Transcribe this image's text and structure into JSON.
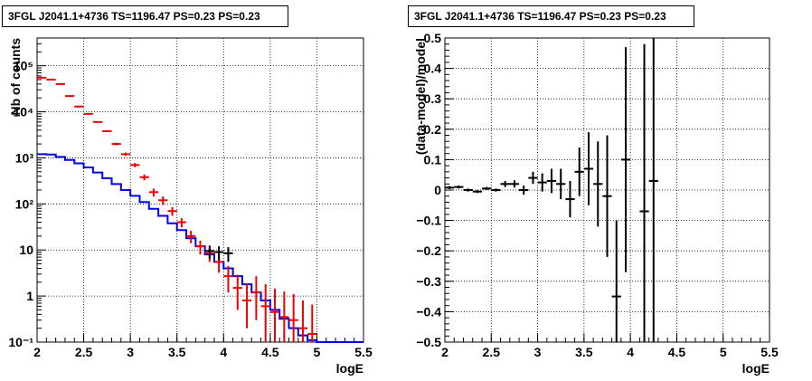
{
  "chart_data": [
    {
      "type": "line",
      "title": "3FGL J2041.1+4736 TS=1196.47 PS=0.23 PS=0.23",
      "xlabel": "logE",
      "ylabel": "Nb of counts",
      "xlim": [
        2,
        5.5
      ],
      "ylim": [
        0.1,
        400000
      ],
      "log_y": true,
      "grid": true,
      "x_ticks": [
        "2",
        "2.5",
        "3",
        "3.5",
        "4",
        "4.5",
        "5",
        "5.5"
      ],
      "y_ticks": [
        {
          "value": 0.1,
          "label": "10⁻¹"
        },
        {
          "value": 1,
          "label": "1"
        },
        {
          "value": 10,
          "label": "10"
        },
        {
          "value": 100,
          "label": "10²"
        },
        {
          "value": 1000,
          "label": "10³"
        },
        {
          "value": 10000,
          "label": "10⁴"
        },
        {
          "value": 100000,
          "label": "10⁵"
        }
      ],
      "series": [
        {
          "kind": "step",
          "color": "#0000ee",
          "bin_edges": [
            2.0,
            2.1,
            2.2,
            2.3,
            2.4,
            2.5,
            2.6,
            2.7,
            2.8,
            2.9,
            3.0,
            3.1,
            3.2,
            3.3,
            3.4,
            3.5,
            3.6,
            3.7,
            3.8,
            3.9,
            4.0,
            4.1,
            4.2,
            4.3,
            4.4,
            4.5,
            4.6,
            4.7,
            4.8,
            4.9,
            5.0,
            5.5
          ],
          "values": [
            1200,
            1180,
            1050,
            900,
            760,
            620,
            480,
            360,
            270,
            200,
            150,
            110,
            78,
            55,
            38,
            27,
            18,
            12,
            8,
            5.5,
            4,
            2.7,
            1.8,
            1.2,
            0.8,
            0.5,
            0.32,
            0.2,
            0.14,
            0.11,
            0.1
          ]
        },
        {
          "kind": "errorbar",
          "color": "#ee0000",
          "x": [
            2.05,
            2.15,
            2.25,
            2.35,
            2.45,
            2.55,
            2.65,
            2.75,
            2.85,
            2.95,
            3.05,
            3.15,
            3.25,
            3.35,
            3.45,
            3.55,
            3.65,
            3.75,
            3.85,
            3.95,
            4.05,
            4.15,
            4.25,
            4.35,
            4.45,
            4.55,
            4.65,
            4.75,
            4.85,
            4.95
          ],
          "xerr": 0.05,
          "y": [
            55000,
            50000,
            40000,
            22000,
            13000,
            9000,
            6000,
            3800,
            2000,
            1200,
            700,
            380,
            180,
            120,
            70,
            40,
            20,
            12,
            8.5,
            5.5,
            2.7,
            1.5,
            0.8,
            1.2,
            0.6,
            0.45,
            0.35,
            0.3,
            0.2,
            0.15
          ],
          "yerr_low": [
            800,
            700,
            600,
            450,
            350,
            280,
            220,
            180,
            130,
            100,
            75,
            55,
            35,
            25,
            15,
            9,
            6,
            4,
            3,
            2.3,
            1.5,
            1.0,
            0.6,
            0.9,
            0.5,
            0.4,
            0.33,
            0.29,
            0.19,
            0.14
          ],
          "yerr_high": [
            800,
            700,
            600,
            450,
            350,
            280,
            220,
            180,
            130,
            100,
            75,
            55,
            35,
            25,
            15,
            9,
            6,
            4,
            3,
            2.3,
            1.8,
            1.4,
            1.1,
            1.5,
            1.2,
            1.0,
            0.9,
            0.8,
            0.6,
            0.5
          ]
        },
        {
          "kind": "errorbar",
          "color": "#000000",
          "x": [
            3.85,
            3.95,
            4.05
          ],
          "xerr": 0.05,
          "y": [
            9.5,
            9,
            8.5
          ],
          "yerr_low": [
            3,
            3,
            3
          ],
          "yerr_high": [
            3,
            3,
            3
          ]
        }
      ]
    },
    {
      "type": "scatter",
      "title": "3FGL J2041.1+4736 TS=1196.47 PS=0.23 PS=0.23",
      "xlabel": "logE",
      "ylabel": "(data-model)/model",
      "xlim": [
        2,
        5.5
      ],
      "ylim": [
        -0.5,
        0.5
      ],
      "grid": true,
      "x_ticks": [
        "2",
        "2.5",
        "3",
        "3.5",
        "4",
        "4.5",
        "5",
        "5.5"
      ],
      "y_ticks": [
        "−0.5",
        "−0.4",
        "−0.3",
        "−0.2",
        "−0.1",
        "0",
        "0.1",
        "0.2",
        "0.3",
        "0.4",
        "0.5"
      ],
      "series": [
        {
          "kind": "errorbar",
          "color": "#000000",
          "x": [
            2.05,
            2.15,
            2.25,
            2.35,
            2.45,
            2.55,
            2.65,
            2.75,
            2.85,
            2.95,
            3.05,
            3.15,
            3.25,
            3.35,
            3.45,
            3.55,
            3.65,
            3.75,
            3.85,
            3.95,
            4.15,
            4.25
          ],
          "xerr": 0.05,
          "y": [
            0.008,
            0.01,
            0.0,
            -0.005,
            0.005,
            0.0,
            0.02,
            0.02,
            0.0,
            0.04,
            0.025,
            0.03,
            0.02,
            -0.03,
            0.06,
            0.07,
            0.02,
            -0.02,
            -0.35,
            0.1,
            -0.07,
            0.03
          ],
          "yerr": [
            0.005,
            0.005,
            0.005,
            0.005,
            0.005,
            0.005,
            0.01,
            0.012,
            0.015,
            0.02,
            0.03,
            0.04,
            0.05,
            0.06,
            0.08,
            0.12,
            0.14,
            0.2,
            0.25,
            0.37,
            0.55,
            0.6
          ]
        }
      ]
    }
  ]
}
